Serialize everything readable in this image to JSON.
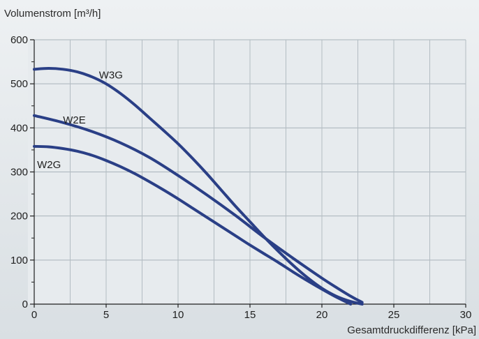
{
  "chart_data": {
    "type": "line",
    "ylabel": "Volumenstrom [m³/h]",
    "xlabel": "Gesamtdruckdifferenz [kPa]",
    "xlim": [
      0,
      30
    ],
    "ylim": [
      0,
      600
    ],
    "xticks": [
      0,
      5,
      10,
      15,
      20,
      25,
      30
    ],
    "yticks": [
      0,
      100,
      200,
      300,
      400,
      500,
      600
    ],
    "grid": true,
    "series": [
      {
        "name": "W3G",
        "x": [
          0,
          1,
          2,
          3,
          4,
          5,
          6,
          7,
          8,
          9,
          10,
          11,
          12,
          13,
          14,
          15,
          16,
          17,
          18,
          19,
          20,
          21,
          22,
          22.8
        ],
        "y": [
          533,
          535,
          533,
          527,
          516,
          500,
          478,
          452,
          423,
          394,
          364,
          331,
          296,
          259,
          222,
          187,
          152,
          119,
          88,
          60,
          36,
          18,
          6,
          0
        ]
      },
      {
        "name": "W2E",
        "x": [
          0,
          2,
          4,
          6,
          8,
          10,
          12,
          14,
          16,
          18,
          20,
          21,
          22,
          22.8
        ],
        "y": [
          428,
          412,
          392,
          366,
          333,
          292,
          248,
          201,
          151,
          104,
          59,
          38,
          18,
          4
        ]
      },
      {
        "name": "W2G",
        "x": [
          0,
          1,
          2,
          3,
          4,
          5,
          6,
          7,
          8,
          9,
          10,
          11,
          12,
          13,
          14,
          15,
          16,
          17,
          18,
          19,
          20,
          21,
          22
        ],
        "y": [
          358,
          357,
          353,
          347,
          338,
          326,
          312,
          296,
          278,
          259,
          239,
          218,
          197,
          176,
          155,
          134,
          114,
          94,
          73,
          53,
          34,
          16,
          0
        ]
      }
    ],
    "series_color": "#2a3f86"
  }
}
